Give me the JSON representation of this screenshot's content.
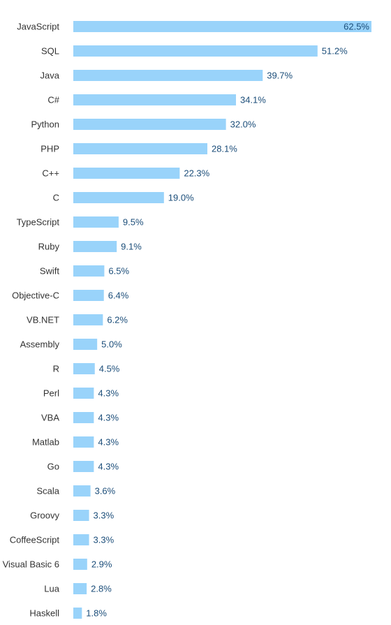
{
  "chart_data": {
    "type": "bar",
    "orientation": "horizontal",
    "title": "",
    "xlabel": "",
    "ylabel": "",
    "xlim": [
      0,
      62.5
    ],
    "grid": false,
    "legend": "none",
    "value_suffix": "%",
    "bar_color": "#99d3fa",
    "label_color": "#1c4e7a",
    "categories": [
      "JavaScript",
      "SQL",
      "Java",
      "C#",
      "Python",
      "PHP",
      "C++",
      "C",
      "TypeScript",
      "Ruby",
      "Swift",
      "Objective-C",
      "VB.NET",
      "Assembly",
      "R",
      "Perl",
      "VBA",
      "Matlab",
      "Go",
      "Scala",
      "Groovy",
      "CoffeeScript",
      "Visual Basic 6",
      "Lua",
      "Haskell"
    ],
    "values": [
      62.5,
      51.2,
      39.7,
      34.1,
      32.0,
      28.1,
      22.3,
      19.0,
      9.5,
      9.1,
      6.5,
      6.4,
      6.2,
      5.0,
      4.5,
      4.3,
      4.3,
      4.3,
      4.3,
      3.6,
      3.3,
      3.3,
      2.9,
      2.8,
      1.8
    ],
    "value_labels": [
      "62.5%",
      "51.2%",
      "39.7%",
      "34.1%",
      "32.0%",
      "28.1%",
      "22.3%",
      "19.0%",
      "9.5%",
      "9.1%",
      "6.5%",
      "6.4%",
      "6.2%",
      "5.0%",
      "4.5%",
      "4.3%",
      "4.3%",
      "4.3%",
      "4.3%",
      "3.6%",
      "3.3%",
      "3.3%",
      "2.9%",
      "2.8%",
      "1.8%"
    ]
  }
}
